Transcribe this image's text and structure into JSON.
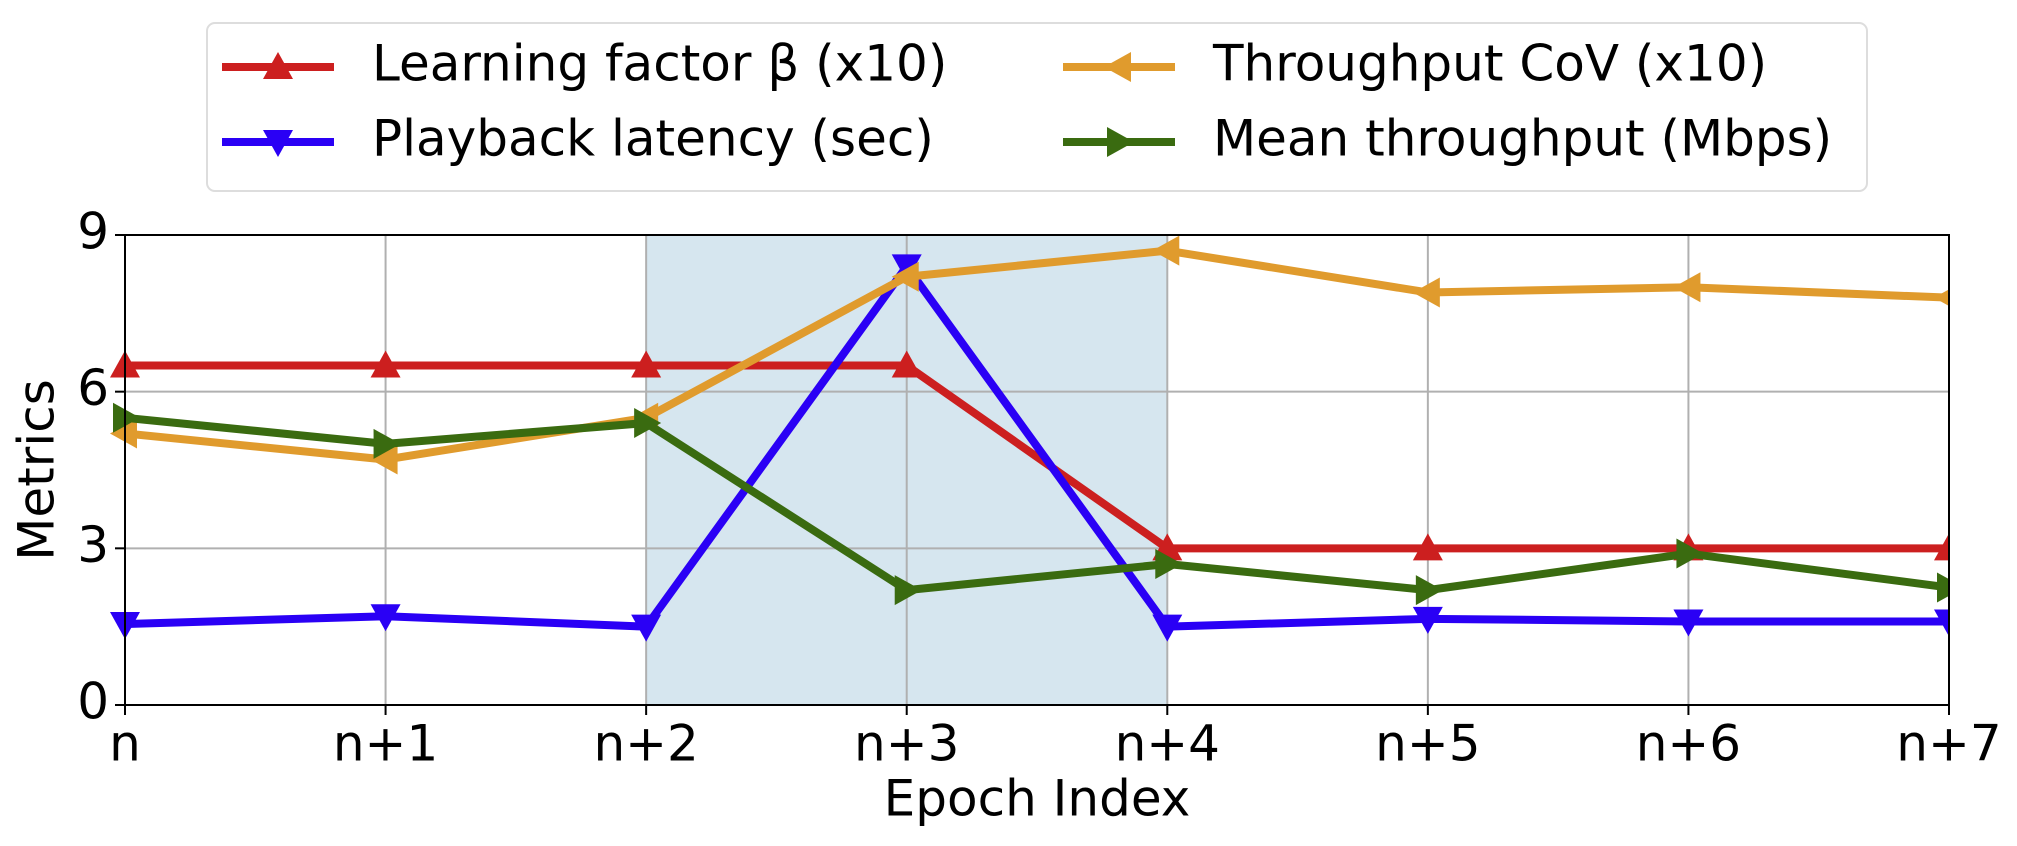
{
  "chart_data": {
    "type": "line",
    "x_label": "Epoch Index",
    "y_label": "Metrics",
    "categories": [
      "n",
      "n+1",
      "n+2",
      "n+3",
      "n+4",
      "n+5",
      "n+6",
      "n+7"
    ],
    "series": [
      {
        "name": "Learning factor β (x10)",
        "color": "#cc1f1f",
        "marker": "triangle-up",
        "values": [
          6.5,
          6.5,
          6.5,
          6.5,
          3,
          3,
          3,
          3
        ]
      },
      {
        "name": "Playback latency (sec)",
        "color": "#2a00f5",
        "marker": "triangle-down",
        "values": [
          1.55,
          1.7,
          1.5,
          8.4,
          1.5,
          1.65,
          1.6,
          1.6
        ]
      },
      {
        "name": "Throughput CoV (x10)",
        "color": "#e09b2d",
        "marker": "triangle-left",
        "values": [
          5.2,
          4.7,
          5.5,
          8.2,
          8.7,
          7.9,
          8.0,
          7.8
        ]
      },
      {
        "name": "Mean throughput (Mbps)",
        "color": "#3a6b10",
        "marker": "triangle-right",
        "values": [
          5.5,
          5.0,
          5.4,
          2.2,
          2.7,
          2.2,
          2.9,
          2.25
        ]
      }
    ],
    "highlight_span": {
      "from": "n+2",
      "to": "n+4",
      "color": "#d6e6ef"
    },
    "ylim": [
      0,
      9
    ],
    "yticks": [
      0,
      3,
      6,
      9
    ],
    "grid": true,
    "legend": "top"
  }
}
